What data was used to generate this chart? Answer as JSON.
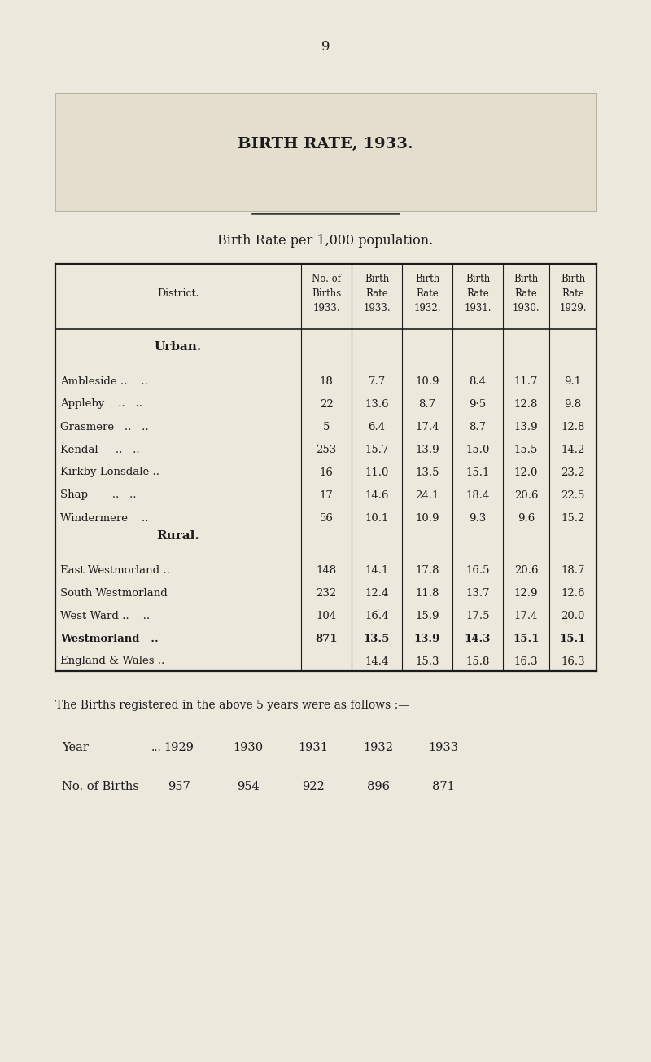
{
  "page_number": "9",
  "background_color": "#ede8dc",
  "title_box_color": "#e8e2d2",
  "title": "BIRTH RATE, 1933.",
  "subtitle": "Birth Rate per 1,000 population.",
  "text_color": "#1c1c1c",
  "col_headers_line1": [
    "",
    "No. of",
    "Birth",
    "Birth",
    "Birth",
    "Birth",
    "Birth"
  ],
  "col_headers_line2": [
    "District.",
    "Births",
    "Rate",
    "Rate",
    "Rate",
    "Rate",
    "Rate"
  ],
  "col_headers_line3": [
    "",
    "1933.",
    "1933.",
    "1932.",
    "1931.",
    "1930.",
    "1929."
  ],
  "urban_header": "Urban.",
  "rural_header": "Rural.",
  "urban_rows": [
    [
      "Ambleside ..    ..",
      "18",
      "7.7",
      "10.9",
      "8.4",
      "11.7",
      "9.1",
      false
    ],
    [
      "Appleby    ..   ..",
      "22",
      "13.6",
      "8.7",
      "9·5",
      "12.8",
      "9.8",
      false
    ],
    [
      "Grasmere   ..   ..",
      "5",
      "6.4",
      "17.4",
      "8.7",
      "13.9",
      "12.8",
      false
    ],
    [
      "Kendal     ..   ..",
      "253",
      "15.7",
      "13.9",
      "15.0",
      "15.5",
      "14.2",
      false
    ],
    [
      "Kirkby Lonsdale ..",
      "16",
      "11.0",
      "13.5",
      "15.1",
      "12.0",
      "23.2",
      false
    ],
    [
      "Shap       ..   ..",
      "17",
      "14.6",
      "24.1",
      "18.4",
      "20.6",
      "22.5",
      false
    ],
    [
      "Windermere    ..",
      "56",
      "10.1",
      "10.9",
      "9.3",
      "9.6",
      "15.2",
      false
    ]
  ],
  "rural_rows": [
    [
      "East Westmorland ..",
      "148",
      "14.1",
      "17.8",
      "16.5",
      "20.6",
      "18.7",
      false
    ],
    [
      "South Westmorland",
      "232",
      "12.4",
      "11.8",
      "13.7",
      "12.9",
      "12.6",
      false
    ],
    [
      "West Ward ..    ..",
      "104",
      "16.4",
      "15.9",
      "17.5",
      "17.4",
      "20.0",
      false
    ],
    [
      "Westmorland   ..",
      "871",
      "13.5",
      "13.9",
      "14.3",
      "15.1",
      "15.1",
      true
    ],
    [
      "England & Wales ..",
      "",
      "14.4",
      "15.3",
      "15.8",
      "16.3",
      "16.3",
      false
    ]
  ],
  "footer_text": "The Births registered in the above 5 years were as follows :—",
  "year_label": "Year",
  "year_ellipsis": "...",
  "years": [
    "1929",
    "1930",
    "1931",
    "1932",
    "1933"
  ],
  "births_label": "No. of Births",
  "births_values": [
    "957",
    "954",
    "922",
    "896",
    "871"
  ]
}
